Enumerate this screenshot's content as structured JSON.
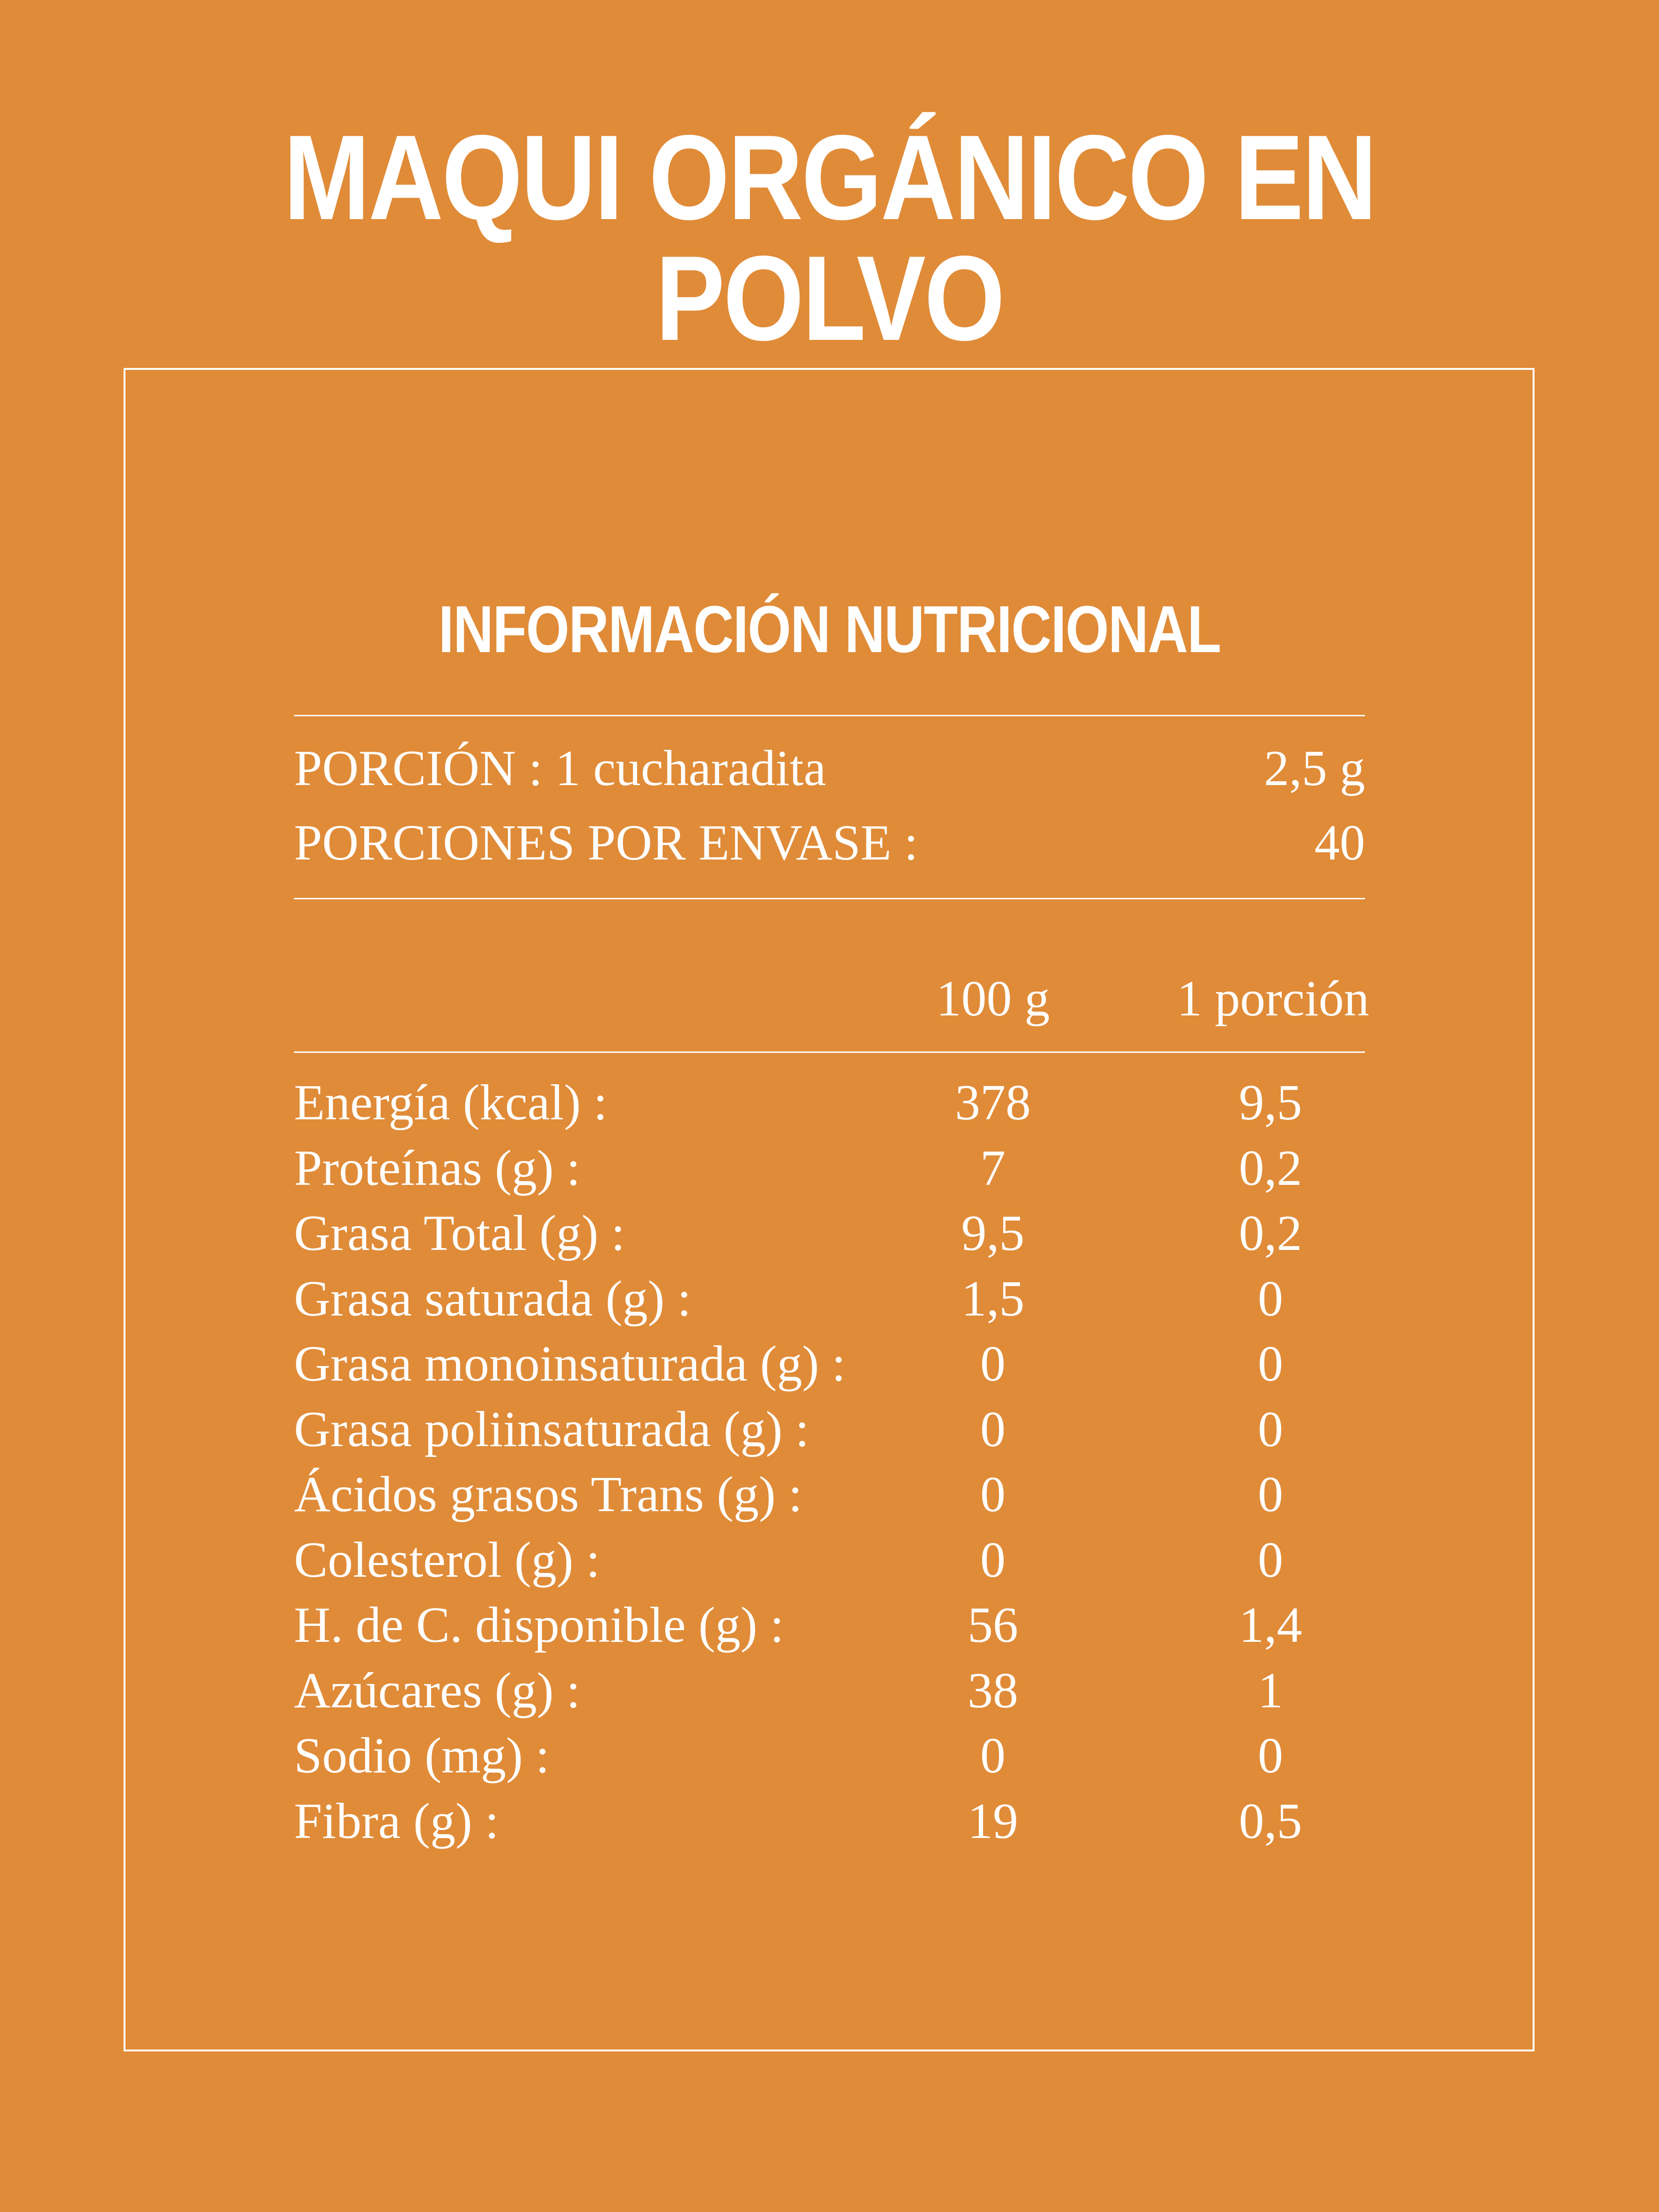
{
  "title": "MAQUI ORGÁNICO EN POLVO",
  "panel": {
    "heading": "INFORMACIÓN NUTRICIONAL",
    "serving": {
      "label": "PORCIÓN : 1 cucharadita",
      "value": "2,5 g"
    },
    "servings_per_container": {
      "label": "PORCIONES POR ENVASE :",
      "value": "40"
    },
    "columns": {
      "per_100": "100  g",
      "per_portion": "1 porción"
    },
    "rows": [
      {
        "label": "Energía (kcal) :",
        "per_100": "378",
        "per_portion": "9,5"
      },
      {
        "label": "Proteínas (g) :",
        "per_100": "7",
        "per_portion": "0,2"
      },
      {
        "label": "Grasa Total (g) :",
        "per_100": "9,5",
        "per_portion": "0,2"
      },
      {
        "label": "Grasa saturada (g) :",
        "per_100": "1,5",
        "per_portion": "0"
      },
      {
        "label": "Grasa monoinsaturada (g) :",
        "per_100": "0",
        "per_portion": "0"
      },
      {
        "label": "Grasa poliinsaturada (g) :",
        "per_100": "0",
        "per_portion": "0"
      },
      {
        "label": "Ácidos grasos Trans (g) :",
        "per_100": "0",
        "per_portion": "0"
      },
      {
        "label": "Colesterol (g) :",
        "per_100": "0",
        "per_portion": "0"
      },
      {
        "label": "H. de C. disponible (g) :",
        "per_100": "56",
        "per_portion": "1,4"
      },
      {
        "label": "Azúcares (g) :",
        "per_100": "38",
        "per_portion": "1"
      },
      {
        "label": "Sodio (mg) :",
        "per_100": "0",
        "per_portion": "0"
      },
      {
        "label": "Fibra (g) :",
        "per_100": "19",
        "per_portion": "0,5"
      }
    ]
  },
  "colors": {
    "background": "#E08B38",
    "text": "#FFFFFF"
  }
}
